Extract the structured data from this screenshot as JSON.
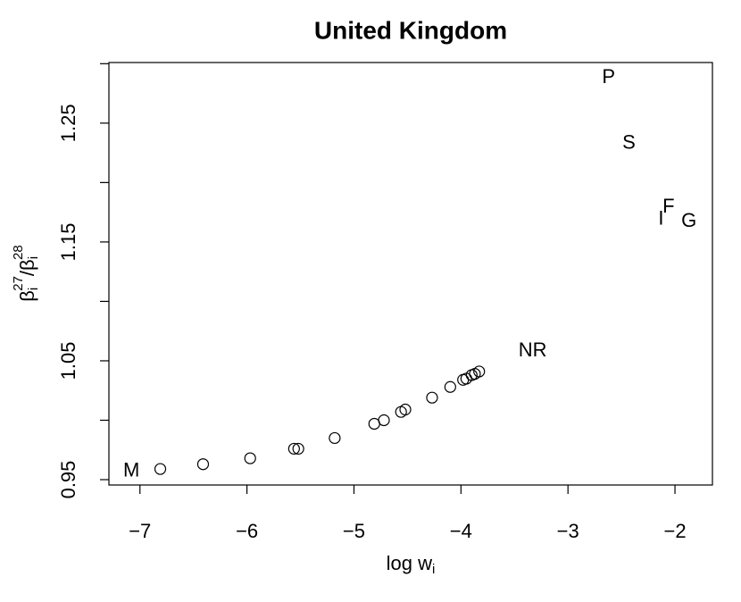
{
  "chart_data": {
    "type": "scatter",
    "title": "United Kingdom",
    "xlabel": {
      "text": "log w",
      "sub": "i"
    },
    "ylabel": [
      {
        "text": "β",
        "sub": "i",
        "sup": "27"
      },
      {
        "text": "/"
      },
      {
        "text": "β",
        "sub": "i",
        "sup": "28"
      }
    ],
    "xlim": [
      -7.29,
      -1.65
    ],
    "ylim": [
      0.9455,
      1.301
    ],
    "xticks": [
      {
        "value": -7,
        "label": "−7"
      },
      {
        "value": -6,
        "label": "−6"
      },
      {
        "value": -5,
        "label": "−5"
      },
      {
        "value": -4,
        "label": "−4"
      },
      {
        "value": -3,
        "label": "−3"
      },
      {
        "value": -2,
        "label": "−2"
      }
    ],
    "yticks": [
      0.95,
      1.05,
      1.15,
      1.25
    ],
    "yminor_ticks": [
      1.0,
      1.1,
      1.2,
      1.3
    ],
    "color": "#000000",
    "x": [
      -6.81,
      -6.41,
      -5.97,
      -5.56,
      -5.52,
      -5.18,
      -4.81,
      -4.72,
      -4.56,
      -4.52,
      -4.27,
      -4.1,
      -3.98,
      -3.95,
      -3.9,
      -3.87,
      -3.83
    ],
    "values": [
      0.959,
      0.963,
      0.968,
      0.976,
      0.976,
      0.985,
      0.997,
      1.0,
      1.007,
      1.009,
      1.019,
      1.028,
      1.034,
      1.035,
      1.038,
      1.039,
      1.041
    ],
    "labels": [
      {
        "text": "M",
        "x": -7.08,
        "y": 0.957
      },
      {
        "text": "NR",
        "x": -3.33,
        "y": 1.058
      },
      {
        "text": "P",
        "x": -2.62,
        "y": 1.288
      },
      {
        "text": "S",
        "x": -2.43,
        "y": 1.233
      },
      {
        "text": "I",
        "x": -2.13,
        "y": 1.169
      },
      {
        "text": "F",
        "x": -2.06,
        "y": 1.179
      },
      {
        "text": "G",
        "x": -1.87,
        "y": 1.167
      }
    ]
  }
}
